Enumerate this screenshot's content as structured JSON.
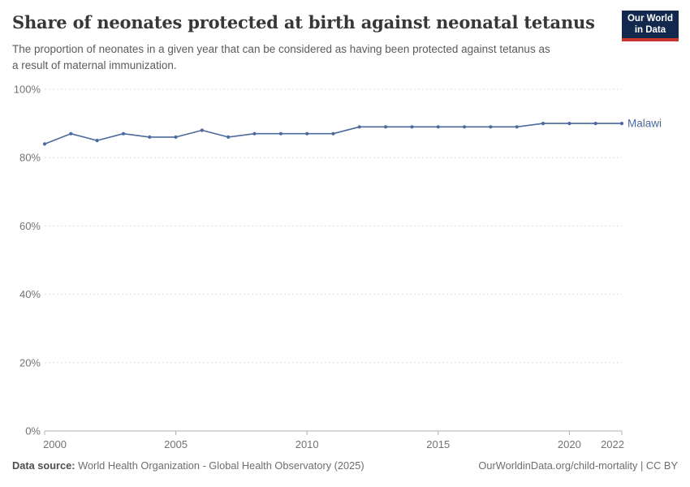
{
  "header": {
    "title": "Share of neonates protected at birth against neonatal tetanus",
    "subtitle_line1": "The proportion of neonates in a given year that can be considered as having been protected against tetanus as",
    "subtitle_line2": "a result of maternal immunization.",
    "logo": {
      "line1": "Our World",
      "line2": "in Data"
    }
  },
  "chart_data": {
    "type": "line",
    "title": "Share of neonates protected at birth against neonatal tetanus",
    "subtitle": "The proportion of neonates in a given year that can be considered as having been protected against tetanus as a result of maternal immunization.",
    "xlabel": "",
    "ylabel": "",
    "unit": "%",
    "xlim": [
      2000,
      2022
    ],
    "ylim": [
      0,
      100
    ],
    "grid": "horizontal-dashed",
    "legend_position": "end-of-line-label",
    "x": [
      2000,
      2001,
      2002,
      2003,
      2004,
      2005,
      2006,
      2007,
      2008,
      2009,
      2010,
      2011,
      2012,
      2013,
      2014,
      2015,
      2016,
      2017,
      2018,
      2019,
      2020,
      2021,
      2022
    ],
    "series": [
      {
        "name": "Malawi",
        "color": "#4C6A9C",
        "values": [
          84,
          87,
          85,
          87,
          86,
          86,
          88,
          86,
          87,
          87,
          87,
          87,
          89,
          89,
          89,
          89,
          89,
          89,
          89,
          90,
          90,
          90,
          90
        ]
      }
    ],
    "x_ticks": [
      {
        "v": 2000,
        "label": "2000"
      },
      {
        "v": 2005,
        "label": "2005"
      },
      {
        "v": 2010,
        "label": "2010"
      },
      {
        "v": 2015,
        "label": "2015"
      },
      {
        "v": 2020,
        "label": "2020"
      },
      {
        "v": 2022,
        "label": "2022"
      }
    ],
    "y_ticks": [
      {
        "v": 0,
        "label": "0%"
      },
      {
        "v": 20,
        "label": "20%"
      },
      {
        "v": 40,
        "label": "40%"
      },
      {
        "v": 60,
        "label": "60%"
      },
      {
        "v": 80,
        "label": "80%"
      },
      {
        "v": 100,
        "label": "100%"
      }
    ]
  },
  "footer": {
    "source_label": "Data source:",
    "source_text": "World Health Organization - Global Health Observatory (2025)",
    "link_text": "OurWorldinData.org/child-mortality | CC BY"
  },
  "colors": {
    "series": "#4C6A9C",
    "title": "#373737",
    "subtitle": "#5b5b5b",
    "tick_label": "#737373",
    "grid_line": "#dcdcdc",
    "axis_line": "#b0b0b0",
    "logo_bg": "#12294d",
    "logo_stripe": "#c7362c"
  }
}
